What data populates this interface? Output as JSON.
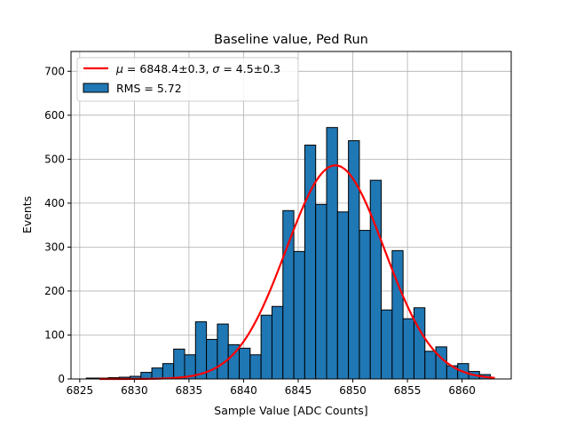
{
  "chart_data": {
    "type": "bar",
    "title": "Baseline value, Ped Run",
    "xlabel": "Sample Value [ADC Counts]",
    "ylabel": "Events",
    "xlim": [
      6824.2,
      6864.5
    ],
    "ylim": [
      0,
      745
    ],
    "xticks": [
      6825,
      6830,
      6835,
      6840,
      6845,
      6850,
      6855,
      6860
    ],
    "yticks": [
      0,
      100,
      200,
      300,
      400,
      500,
      600,
      700
    ],
    "grid": true,
    "legend_position": "top-left",
    "bin_edges": [
      6825.6,
      6826.6,
      6827.6,
      6828.6,
      6829.6,
      6830.6,
      6831.6,
      6832.6,
      6833.6,
      6834.6,
      6835.6,
      6836.6,
      6837.6,
      6838.6,
      6839.6,
      6840.6,
      6841.6,
      6842.6,
      6843.6,
      6844.6,
      6845.6,
      6846.6,
      6847.6,
      6848.6,
      6849.6,
      6850.6,
      6851.6,
      6852.6,
      6853.6,
      6854.6,
      6855.6,
      6856.6,
      6857.6,
      6858.6,
      6859.6,
      6860.6,
      6861.6,
      6862.6
    ],
    "series": [
      {
        "name": "RMS = 5.72",
        "kind": "histogram",
        "color": "#1f77b4",
        "edgecolor": "#000000",
        "values": [
          2,
          2,
          3,
          4,
          6,
          15,
          25,
          35,
          68,
          55,
          130,
          90,
          125,
          78,
          70,
          55,
          145,
          165,
          383,
          290,
          532,
          397,
          572,
          380,
          542,
          338,
          452,
          157,
          292,
          137,
          162,
          63,
          73,
          30,
          35,
          17,
          10
        ]
      },
      {
        "name": "$\\mu = 6848.4\\pm0.3$, $\\sigma = 4.5\\pm0.3$",
        "kind": "gaussian_fit",
        "color": "#ff0000",
        "mu": 6848.4,
        "sigma": 4.5,
        "amplitude": 486,
        "x_range": [
          6826.8,
          6863.0
        ]
      }
    ]
  },
  "legend": {
    "fit_label_mu_value": "6848.4±0.3",
    "fit_label_sigma_value": "4.5±0.3",
    "hist_label": "RMS = 5.72"
  }
}
